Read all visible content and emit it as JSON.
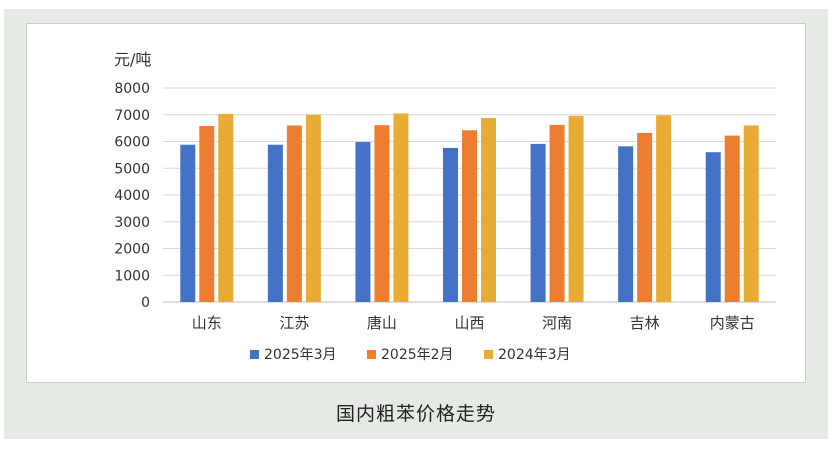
{
  "caption": "国内粗苯价格走势",
  "chart_data": {
    "type": "bar",
    "unit_label": "元/吨",
    "categories": [
      "山东",
      "江苏",
      "唐山",
      "山西",
      "河南",
      "吉林",
      "内蒙古"
    ],
    "series": [
      {
        "name": "2025年3月",
        "color": "#4472c4",
        "values": [
          5880,
          5880,
          5980,
          5760,
          5910,
          5820,
          5600
        ]
      },
      {
        "name": "2025年2月",
        "color": "#ed7d31",
        "values": [
          6580,
          6600,
          6610,
          6420,
          6620,
          6320,
          6220
        ]
      },
      {
        "name": "2024年3月",
        "color": "#e8ac35",
        "values": [
          7030,
          7000,
          7050,
          6880,
          6960,
          6980,
          6600
        ]
      }
    ],
    "yticks": [
      "0",
      "1000",
      "2000",
      "3000",
      "4000",
      "5000",
      "6000",
      "7000",
      "8000"
    ],
    "ylim": [
      0,
      8000
    ],
    "grid": true,
    "legend_position": "bottom"
  }
}
